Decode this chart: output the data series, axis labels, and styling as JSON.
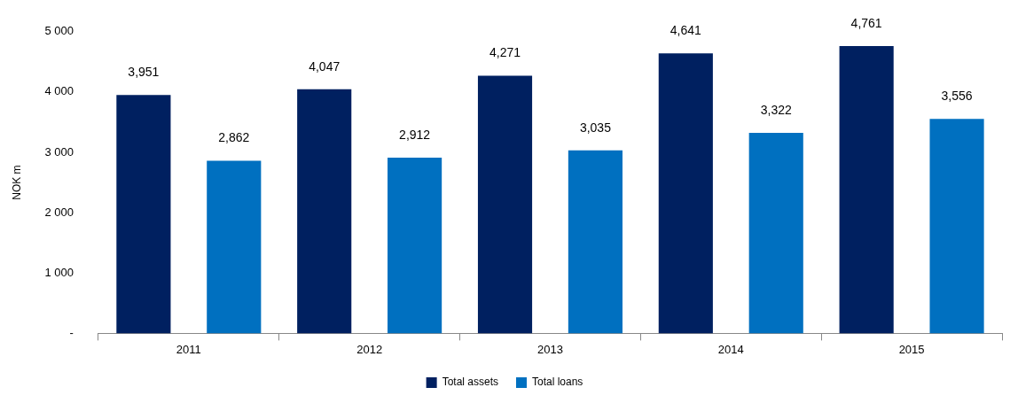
{
  "chart_data": {
    "type": "bar",
    "ylabel": "NOK m",
    "categories": [
      "2011",
      "2012",
      "2013",
      "2014",
      "2015"
    ],
    "series": [
      {
        "name": "Total assets",
        "color": "#002060",
        "values": [
          3951,
          4047,
          4271,
          4641,
          4761
        ],
        "value_labels": [
          "3,951",
          "4,047",
          "4,271",
          "4,641",
          "4,761"
        ]
      },
      {
        "name": "Total loans",
        "color": "#0070c0",
        "values": [
          2862,
          2912,
          3035,
          3322,
          3556
        ],
        "value_labels": [
          "2,862",
          "2,912",
          "3,035",
          "3,322",
          "3,556"
        ]
      }
    ],
    "ylim": [
      0,
      5000
    ],
    "yticks": [
      {
        "value": 0,
        "label": "-"
      },
      {
        "value": 1000,
        "label": "1 000"
      },
      {
        "value": 2000,
        "label": "2 000"
      },
      {
        "value": 3000,
        "label": "3 000"
      },
      {
        "value": 4000,
        "label": "4 000"
      },
      {
        "value": 5000,
        "label": "5 000"
      }
    ],
    "legend": "bottom"
  }
}
